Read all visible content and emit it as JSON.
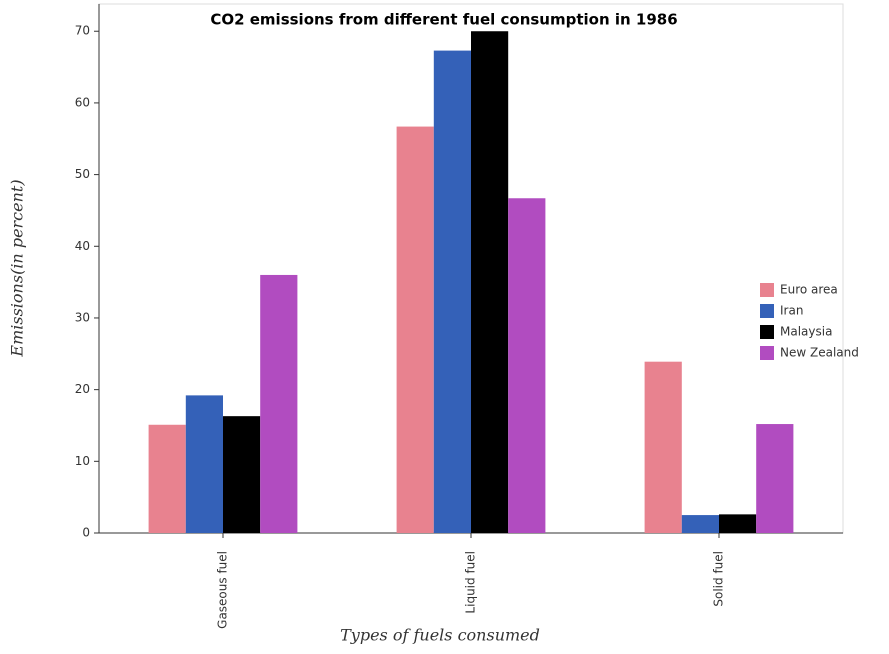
{
  "chart_data": {
    "type": "bar",
    "title": "CO2 emissions from different fuel consumption in 1986",
    "x_label": "Types of fuels consumed",
    "y_label": "Emissions(in percent)",
    "categories": [
      "Gaseous fuel",
      "Liquid fuel",
      "Solid fuel"
    ],
    "series": [
      {
        "name": "Euro area",
        "color": "#e8828f",
        "values": [
          15.1,
          56.7,
          23.9
        ]
      },
      {
        "name": "Iran",
        "color": "#3461b8",
        "values": [
          19.2,
          67.3,
          2.5
        ]
      },
      {
        "name": "Malaysia",
        "color": "#000000",
        "values": [
          16.3,
          70.0,
          2.6
        ]
      },
      {
        "name": "New Zealand",
        "color": "#b14cc0",
        "values": [
          36.0,
          46.7,
          15.2
        ]
      }
    ],
    "ylim": [
      0,
      73.8
    ],
    "yticks": [
      0,
      10,
      20,
      30,
      40,
      50,
      60,
      70
    ],
    "grid": false,
    "legend": "right"
  }
}
